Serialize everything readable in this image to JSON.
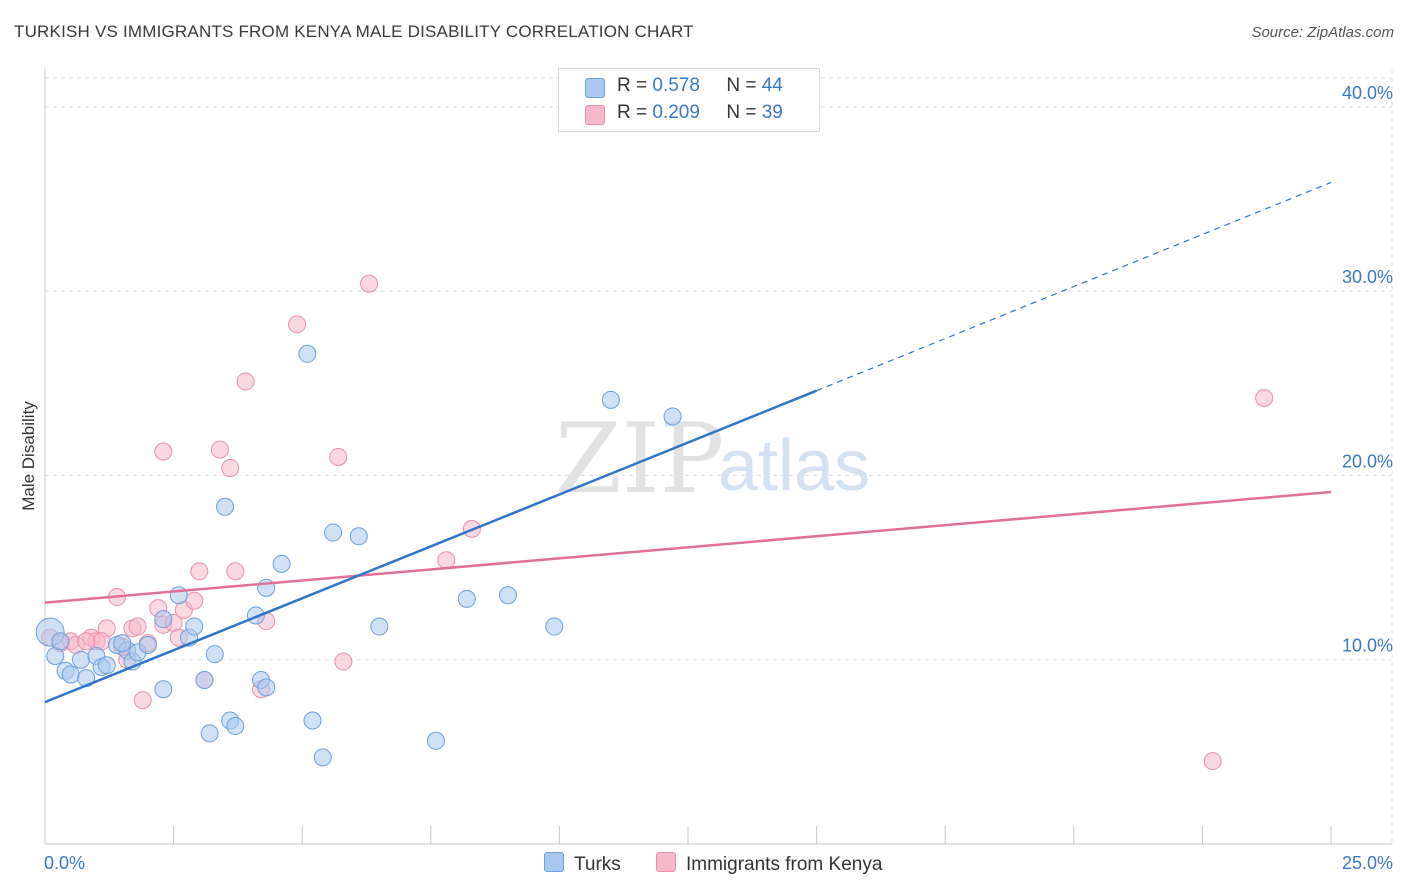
{
  "title": "TURKISH VS IMMIGRANTS FROM KENYA MALE DISABILITY CORRELATION CHART",
  "source": "Source: ZipAtlas.com",
  "watermark": {
    "zip": "ZIP",
    "atlas": "atlas"
  },
  "colors": {
    "turks_fill": "#a9c8ef",
    "turks_stroke": "#6d9fdc",
    "turks_line": "#2f74cc",
    "kenya_fill": "#f5b8ca",
    "kenya_stroke": "#e98fab",
    "kenya_line": "#e0709a",
    "axis_value": "#3a78c9",
    "grid": "#dddddd"
  },
  "legend": {
    "r_label": "R =",
    "n_label": "N =",
    "turks": {
      "r": "0.578",
      "n": "44"
    },
    "kenya": {
      "r": "0.209",
      "n": "39"
    }
  },
  "chart_data": {
    "type": "scatter",
    "title": "TURKISH VS IMMIGRANTS FROM KENYA MALE DISABILITY CORRELATION CHART",
    "xlabel": "",
    "ylabel": "Male Disability",
    "xlim": [
      0,
      25
    ],
    "ylim": [
      0,
      42
    ],
    "x_tick_labels": [
      "0.0%",
      "25.0%"
    ],
    "y_ticks": [
      10,
      20,
      30,
      40
    ],
    "y_tick_labels": [
      "10.0%",
      "20.0%",
      "30.0%",
      "40.0%"
    ],
    "grid": true,
    "legend_position": "top-center",
    "series": [
      {
        "name": "Turks",
        "r": 0.578,
        "n": 44,
        "trend": {
          "x0": 0,
          "y0": 7.7,
          "x1": 15,
          "y1": 24.6,
          "dashed_to_x": 25,
          "dashed_to_y": 35.9
        },
        "points": [
          [
            0.1,
            11.5
          ],
          [
            0.2,
            10.2
          ],
          [
            0.4,
            9.4
          ],
          [
            0.5,
            9.2
          ],
          [
            0.7,
            10.0
          ],
          [
            0.8,
            9.0
          ],
          [
            1.0,
            10.2
          ],
          [
            1.1,
            9.6
          ],
          [
            1.2,
            9.7
          ],
          [
            1.4,
            10.8
          ],
          [
            1.6,
            10.5
          ],
          [
            1.7,
            9.9
          ],
          [
            1.8,
            10.4
          ],
          [
            2.0,
            10.8
          ],
          [
            2.3,
            12.2
          ],
          [
            2.6,
            13.5
          ],
          [
            2.8,
            11.2
          ],
          [
            2.9,
            11.8
          ],
          [
            3.1,
            8.9
          ],
          [
            3.3,
            10.3
          ],
          [
            3.5,
            18.3
          ],
          [
            4.1,
            12.4
          ],
          [
            4.3,
            13.9
          ],
          [
            4.6,
            15.2
          ],
          [
            5.1,
            26.6
          ],
          [
            5.6,
            16.9
          ],
          [
            6.1,
            16.7
          ],
          [
            6.5,
            11.8
          ],
          [
            8.2,
            13.3
          ],
          [
            9.0,
            13.5
          ],
          [
            9.9,
            11.8
          ],
          [
            11.0,
            24.1
          ],
          [
            12.2,
            23.2
          ],
          [
            2.3,
            8.4
          ],
          [
            3.2,
            6.0
          ],
          [
            3.6,
            6.7
          ],
          [
            3.7,
            6.4
          ],
          [
            4.2,
            8.9
          ],
          [
            4.3,
            8.5
          ],
          [
            5.2,
            6.7
          ],
          [
            5.4,
            4.7
          ],
          [
            7.6,
            5.6
          ],
          [
            0.3,
            11.0
          ],
          [
            1.5,
            10.9
          ]
        ]
      },
      {
        "name": "Immigrants from Kenya",
        "r": 0.209,
        "n": 39,
        "trend": {
          "x0": 0,
          "y0": 13.1,
          "x1": 25,
          "y1": 19.1
        },
        "points": [
          [
            0.1,
            11.2
          ],
          [
            0.3,
            10.9
          ],
          [
            0.5,
            11.0
          ],
          [
            0.6,
            10.8
          ],
          [
            0.9,
            11.2
          ],
          [
            1.0,
            11.0
          ],
          [
            1.2,
            11.7
          ],
          [
            1.4,
            13.4
          ],
          [
            1.6,
            10.0
          ],
          [
            1.7,
            11.7
          ],
          [
            1.8,
            11.8
          ],
          [
            1.9,
            7.8
          ],
          [
            2.2,
            12.8
          ],
          [
            2.3,
            11.9
          ],
          [
            2.5,
            12.0
          ],
          [
            2.6,
            11.2
          ],
          [
            2.7,
            12.7
          ],
          [
            2.9,
            13.2
          ],
          [
            3.0,
            14.8
          ],
          [
            3.4,
            21.4
          ],
          [
            3.6,
            20.4
          ],
          [
            3.7,
            14.8
          ],
          [
            3.9,
            25.1
          ],
          [
            4.3,
            12.1
          ],
          [
            4.9,
            28.2
          ],
          [
            5.7,
            21.0
          ],
          [
            5.8,
            9.9
          ],
          [
            6.3,
            30.4
          ],
          [
            7.8,
            15.4
          ],
          [
            8.3,
            17.1
          ],
          [
            22.7,
            4.5
          ],
          [
            23.7,
            24.2
          ],
          [
            2.3,
            21.3
          ],
          [
            3.1,
            8.9
          ],
          [
            4.2,
            8.4
          ],
          [
            1.1,
            11.0
          ],
          [
            1.5,
            10.7
          ],
          [
            2.0,
            10.9
          ],
          [
            0.8,
            11.0
          ]
        ]
      }
    ]
  },
  "bottom_legend": {
    "turks_label": "Turks",
    "kenya_label": "Immigrants from Kenya"
  }
}
